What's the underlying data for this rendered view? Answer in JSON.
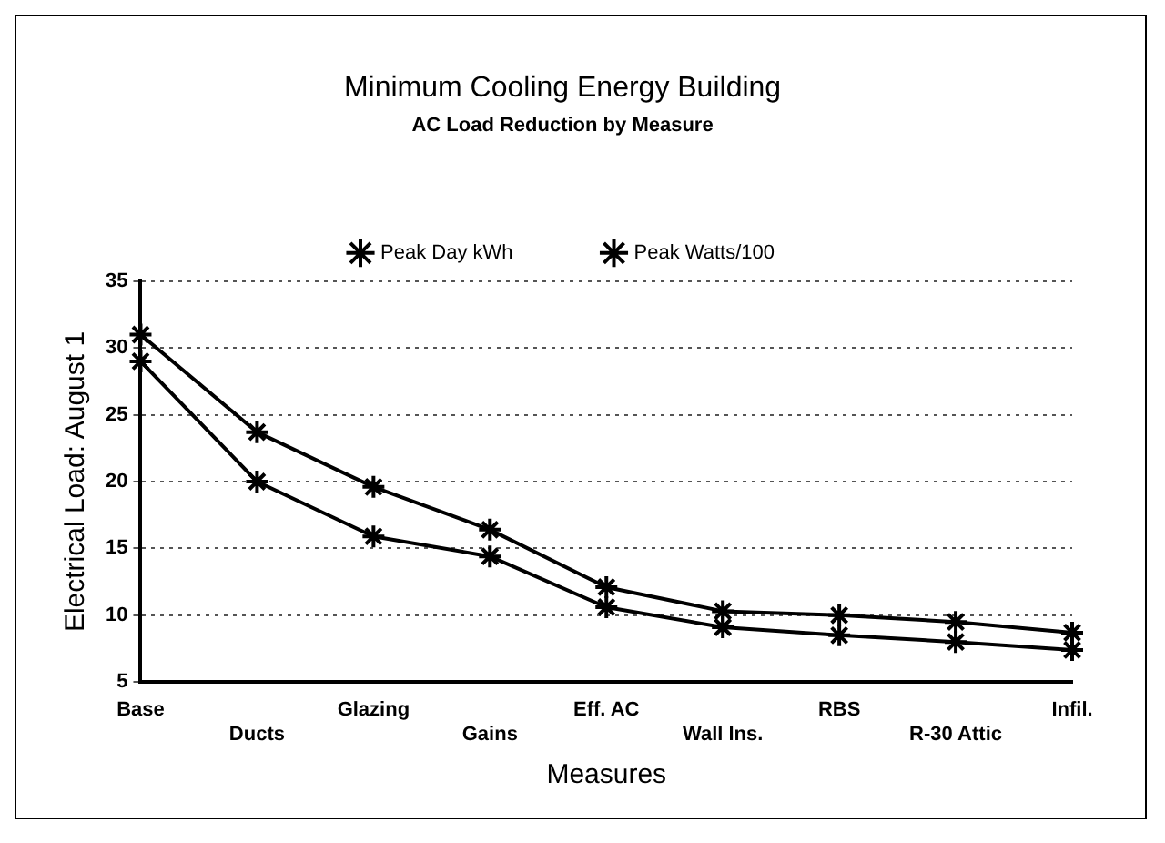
{
  "chart_data": {
    "type": "line",
    "title": "Minimum Cooling Energy Building",
    "subtitle": "AC Load Reduction by Measure",
    "xlabel": "Measures",
    "ylabel": "Electrical Load: August 1",
    "categories": [
      "Base",
      "Ducts",
      "Glazing",
      "Gains",
      "Eff. AC",
      "Wall Ins.",
      "RBS",
      "R-30 Attic",
      "Infil."
    ],
    "series": [
      {
        "name": "Peak Day kWh",
        "color": "#000000",
        "values": [
          31.0,
          23.7,
          19.6,
          16.4,
          12.1,
          10.3,
          10.0,
          9.5,
          8.7
        ]
      },
      {
        "name": "Peak Watts/100",
        "color": "#000000",
        "values": [
          29.0,
          20.0,
          15.9,
          14.4,
          10.6,
          9.1,
          8.5,
          8.0,
          7.4
        ]
      }
    ],
    "ylim": [
      5,
      35
    ],
    "yticks": [
      5,
      10,
      15,
      20,
      25,
      30,
      35
    ],
    "grid": "y",
    "legend": "top",
    "marker": "cross",
    "line_style": "solid"
  }
}
